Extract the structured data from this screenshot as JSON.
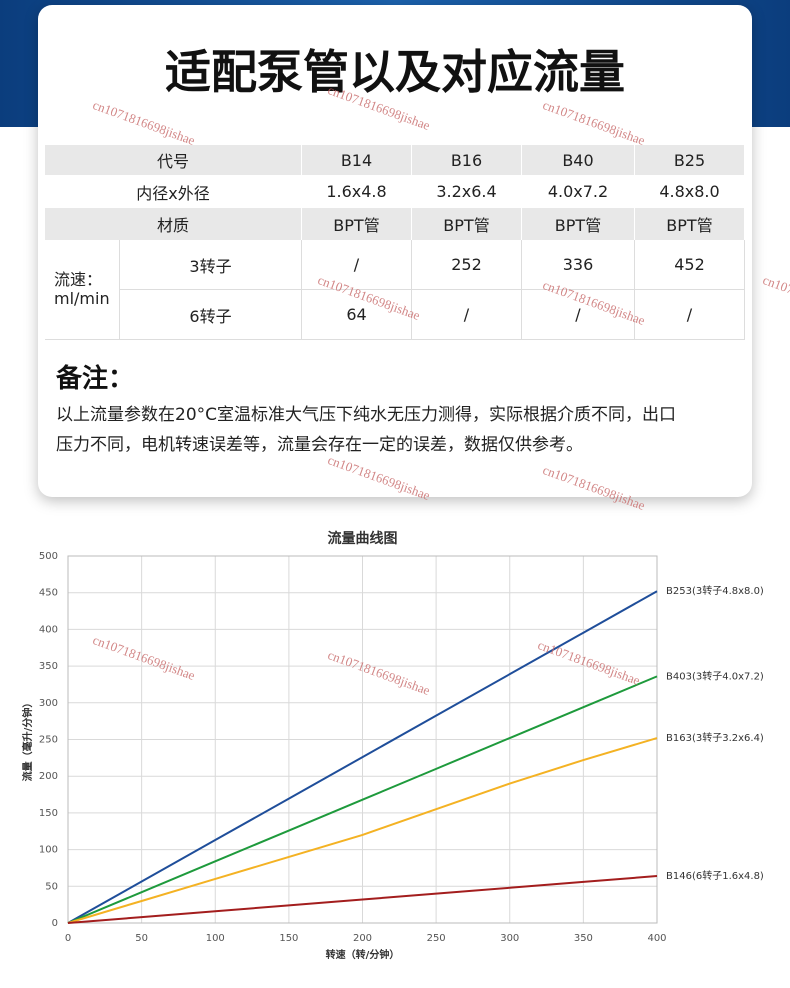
{
  "header": {
    "title": "适配泵管以及对应流量"
  },
  "table": {
    "header": [
      "代号",
      "B14",
      "B16",
      "B40",
      "B25"
    ],
    "rows": [
      [
        "内径x外径",
        "1.6x4.8",
        "3.2x6.4",
        "4.0x7.2",
        "4.8x8.0"
      ],
      [
        "材质",
        "BPT管",
        "BPT管",
        "BPT管",
        "BPT管"
      ]
    ],
    "group_label": [
      "流速：",
      "ml/min"
    ],
    "group_rows": [
      [
        "3转子",
        "/",
        "252",
        "336",
        "452"
      ],
      [
        "6转子",
        "64",
        "/",
        "/",
        "/"
      ]
    ]
  },
  "notes": {
    "title": "备注：",
    "lines": [
      "以上流量参数在20°C室温标准大气压下纯水无压力测得，实际根据介质不同，出口",
      "压力不同，电机转速误差等，流量会存在一定的误差，数据仅供参考。"
    ]
  },
  "watermark": "cn1071816698jishae",
  "chart_data": {
    "type": "line",
    "title": "流量曲线图",
    "x_label": "转速（转/分钟）",
    "y_label": "流量（毫升/分钟）",
    "x": [
      0,
      50,
      100,
      150,
      200,
      250,
      300,
      350,
      400
    ],
    "series": [
      {
        "name": "B253(3转子4.8x8.0)",
        "color": "#1f4e9a",
        "values": [
          0,
          56.5,
          113,
          169.5,
          226,
          282.5,
          339,
          395.5,
          452
        ]
      },
      {
        "name": "B403(3转子4.0x7.2)",
        "color": "#1e9a3c",
        "values": [
          0,
          42,
          84,
          126,
          168,
          210,
          252,
          294,
          336
        ]
      },
      {
        "name": "B163(3转子3.2x6.4)",
        "color": "#f4b223",
        "values": [
          0,
          30,
          60,
          90,
          120,
          155,
          190,
          222,
          252
        ]
      },
      {
        "name": "B146(6转子1.6x4.8)",
        "color": "#a31d1d",
        "values": [
          0,
          8,
          16,
          24,
          32,
          40,
          48,
          56,
          64
        ]
      }
    ],
    "xlim": [
      0,
      400
    ],
    "xticks": [
      0,
      50,
      100,
      150,
      200,
      250,
      300,
      350,
      400
    ],
    "ylim": [
      0,
      500
    ],
    "yticks": [
      0,
      50,
      100,
      150,
      200,
      250,
      300,
      350,
      400,
      450,
      500
    ],
    "grid": true
  }
}
